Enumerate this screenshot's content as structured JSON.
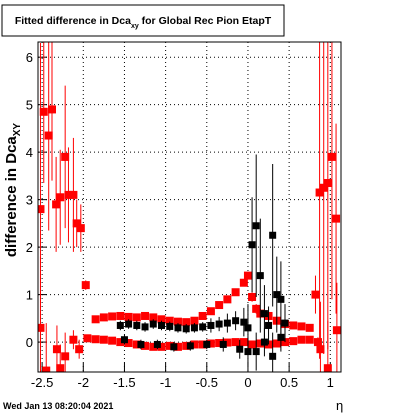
{
  "chart_data": {
    "type": "scatter",
    "title": {
      "main": "Fitted difference in Dca",
      "subscript": "xy",
      "rest": " for Global Rec Pion EtapT"
    },
    "y_label": {
      "main": "difference in Dca",
      "subscript": "XY"
    },
    "x_label": "η",
    "timestamp": "Wed Jan 13 08:20:04 2021",
    "xlim": [
      -2.55,
      1.13
    ],
    "ylim": [
      -0.63,
      6.32
    ],
    "xticks": [
      -2.5,
      -2,
      -1.5,
      -1,
      -0.5,
      0,
      0.5,
      1
    ],
    "yticks": [
      0,
      1,
      2,
      3,
      4,
      5,
      6
    ],
    "grid": true,
    "series": [
      {
        "color": "#ff0000",
        "x": [
          -1.85,
          -1.75,
          -1.65,
          -1.55,
          -1.45,
          -1.35,
          -1.25,
          -1.15,
          -1.05,
          -0.95,
          -0.85,
          -0.75,
          -0.65,
          -0.55,
          -0.45,
          -0.35,
          -0.25,
          -0.15,
          -0.05,
          0,
          0.05,
          0.1,
          0.15,
          0.25,
          0.35,
          0.45,
          0.55,
          0.65,
          0.75
        ],
        "values": [
          0.48,
          0.52,
          0.54,
          0.55,
          0.53,
          0.52,
          0.55,
          0.52,
          0.48,
          0.45,
          0.43,
          0.42,
          0.45,
          0.55,
          0.65,
          0.78,
          0.9,
          1.05,
          1.25,
          1.4,
          0.95,
          0.7,
          0.6,
          0.55,
          0.45,
          0.38,
          0.35,
          0.33,
          0.3
        ],
        "errors": [
          0.05,
          0.05,
          0.05,
          0.05,
          0.05,
          0.05,
          0.05,
          0.05,
          0.05,
          0.05,
          0.05,
          0.05,
          0.05,
          0.05,
          0.05,
          0.05,
          0.05,
          0.05,
          0.05,
          0.05,
          0.1,
          0.1,
          0.1,
          0.1,
          0.05,
          0.05,
          0.05,
          0.05,
          0.05
        ]
      },
      {
        "color": "#ff0000",
        "x": [
          -1.95,
          -1.85,
          -1.75,
          -1.65,
          -1.55,
          -1.45,
          -1.35,
          -1.25,
          -1.15,
          -1.05,
          -0.95,
          -0.85,
          -0.75,
          -0.65,
          -0.55,
          -0.45,
          -0.35,
          -0.25,
          -0.15,
          -0.05,
          0.05,
          0.15,
          0.25,
          0.35,
          0.45,
          0.55,
          0.65,
          0.75,
          0.85
        ],
        "values": [
          0.08,
          0.06,
          0.05,
          0.03,
          0,
          -0.02,
          -0.05,
          -0.08,
          -0.1,
          -0.1,
          -0.08,
          -0.1,
          -0.08,
          -0.05,
          -0.05,
          -0.03,
          -0.02,
          -0.01,
          0,
          0,
          -0.05,
          -0.03,
          -0.05,
          -0.03,
          0,
          0.02,
          0.05,
          0.05,
          0
        ],
        "errors": [
          0.05,
          0.05,
          0.05,
          0.05,
          0.05,
          0.05,
          0.05,
          0.05,
          0.05,
          0.05,
          0.05,
          0.05,
          0.05,
          0.05,
          0.05,
          0.05,
          0.05,
          0.05,
          0.05,
          0.05,
          0.05,
          0.05,
          0.05,
          0.05,
          0.05,
          0.05,
          0.05,
          0.05,
          0.1
        ]
      },
      {
        "color": "#ff0000",
        "x": [
          -2.52,
          -2.48,
          -2.42,
          -2.38,
          -2.33,
          -2.28,
          -2.22,
          -2.18,
          -2.12,
          -2.08,
          -2.03,
          -1.97,
          -2.52,
          -2.45,
          -2.32,
          -2.28,
          -2.22,
          -2.12,
          -2.05,
          0.82,
          0.87,
          0.92,
          0.97,
          1.02,
          1.07,
          1.08,
          0.88,
          0.97
        ],
        "values": [
          2.8,
          4.85,
          4.35,
          4.9,
          2.9,
          3.05,
          3.9,
          3.1,
          3.1,
          2.5,
          2.4,
          1.2,
          0.3,
          -0.6,
          -0.15,
          -0.55,
          -0.3,
          0.05,
          -0.15,
          1.0,
          3.15,
          3.25,
          3.35,
          3.9,
          2.6,
          0.25,
          -0.15,
          -0.55
        ],
        "errors": [
          3.5,
          1.5,
          2.0,
          1.5,
          1.0,
          1.0,
          1.5,
          1.0,
          1.2,
          0.5,
          0.5,
          0.1,
          1.5,
          1.0,
          0.5,
          0.5,
          0.5,
          0.2,
          0.2,
          0.4,
          3.5,
          3.5,
          3.5,
          3.0,
          2.0,
          1.0,
          1.0,
          1.0
        ]
      },
      {
        "color": "#000000",
        "x": [
          -1.55,
          -1.45,
          -1.35,
          -1.25,
          -1.15,
          -1.05,
          -0.95,
          -0.85,
          -0.75,
          -0.65,
          -0.55,
          -0.45,
          -0.35,
          -0.25,
          -0.15,
          -0.05,
          0,
          0.05,
          0.1,
          0.15,
          0.2,
          0.25,
          0.3,
          0.35,
          0.4,
          0.45
        ],
        "values": [
          0.35,
          0.38,
          0.35,
          0.32,
          0.38,
          0.35,
          0.33,
          0.3,
          0.28,
          0.3,
          0.32,
          0.35,
          0.38,
          0.4,
          0.45,
          0.42,
          0.3,
          2.05,
          2.45,
          1.4,
          0.6,
          0.35,
          2.25,
          1.0,
          0.9,
          0.4
        ],
        "errors": [
          0.1,
          0.1,
          0.1,
          0.1,
          0.1,
          0.1,
          0.1,
          0.1,
          0.1,
          0.1,
          0.1,
          0.15,
          0.15,
          0.2,
          0.2,
          0.3,
          0.5,
          1.0,
          1.5,
          1.2,
          0.6,
          0.4,
          1.5,
          0.8,
          0.8,
          0.4
        ]
      },
      {
        "color": "#000000",
        "x": [
          -1.5,
          -1.3,
          -1.1,
          -0.9,
          -0.7,
          -0.5,
          -0.3,
          -0.1,
          0,
          0.1,
          0.2,
          0.3,
          0.4
        ],
        "values": [
          0.05,
          -0.05,
          -0.05,
          -0.1,
          -0.08,
          -0.05,
          -0.05,
          -0.15,
          -0.2,
          -0.2,
          0,
          -0.3,
          0.1
        ],
        "errors": [
          0.1,
          0.1,
          0.1,
          0.1,
          0.1,
          0.1,
          0.15,
          0.2,
          0.3,
          0.4,
          0.3,
          0.5,
          0.3
        ]
      }
    ]
  }
}
